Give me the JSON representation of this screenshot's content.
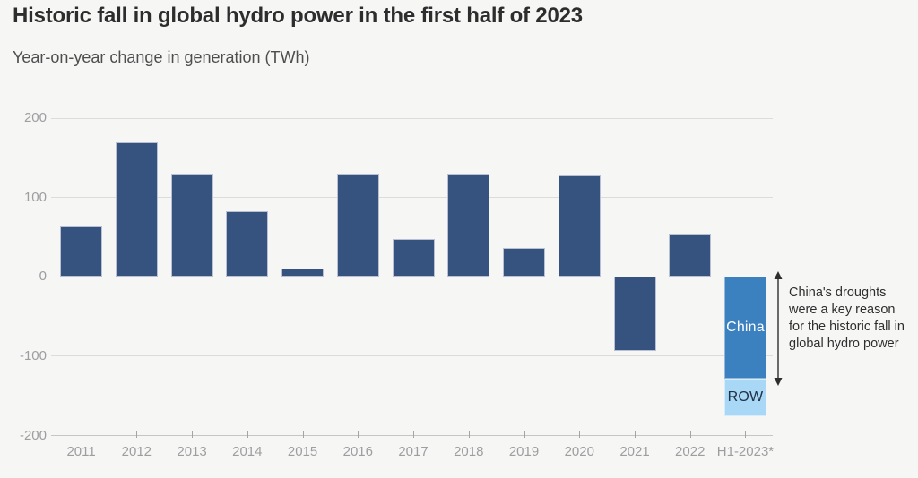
{
  "header": {
    "title": "Historic fall in global hydro power in the first half of 2023",
    "subtitle": "Year-on-year change in generation (TWh)"
  },
  "annotation": {
    "text": "China's droughts were a key reason for the historic fall in global hydro power"
  },
  "chart_data": {
    "type": "bar",
    "title": "Historic fall in global hydro power in the first half of 2023",
    "subtitle": "Year-on-year change in generation (TWh)",
    "unit": "TWh",
    "xlabel": "",
    "ylabel": "Year-on-year change in generation (TWh)",
    "ylim": [
      -200,
      200
    ],
    "yticks": [
      200,
      100,
      0,
      -100,
      -200
    ],
    "grid": true,
    "legend_position": "none",
    "categories": [
      "2011",
      "2012",
      "2013",
      "2014",
      "2015",
      "2016",
      "2017",
      "2018",
      "2019",
      "2020",
      "2021",
      "2022",
      "H1-2023*"
    ],
    "net_values": [
      63,
      170,
      130,
      83,
      10,
      130,
      48,
      130,
      36,
      128,
      -93,
      54,
      -176
    ],
    "bars": [
      {
        "category": "2011",
        "segments": [
          {
            "value": 63,
            "color": "navy"
          }
        ]
      },
      {
        "category": "2012",
        "segments": [
          {
            "value": 170,
            "color": "navy"
          }
        ]
      },
      {
        "category": "2013",
        "segments": [
          {
            "value": 130,
            "color": "navy"
          }
        ]
      },
      {
        "category": "2014",
        "segments": [
          {
            "value": 83,
            "color": "navy"
          }
        ]
      },
      {
        "category": "2015",
        "segments": [
          {
            "value": 10,
            "color": "navy"
          }
        ]
      },
      {
        "category": "2016",
        "segments": [
          {
            "value": 130,
            "color": "navy"
          }
        ]
      },
      {
        "category": "2017",
        "segments": [
          {
            "value": 48,
            "color": "navy"
          }
        ]
      },
      {
        "category": "2018",
        "segments": [
          {
            "value": 130,
            "color": "navy"
          }
        ]
      },
      {
        "category": "2019",
        "segments": [
          {
            "value": 36,
            "color": "navy"
          }
        ]
      },
      {
        "category": "2020",
        "segments": [
          {
            "value": 128,
            "color": "navy"
          }
        ]
      },
      {
        "category": "2021",
        "segments": [
          {
            "value": -93,
            "color": "navy"
          }
        ]
      },
      {
        "category": "2022",
        "segments": [
          {
            "value": 54,
            "color": "navy"
          }
        ]
      },
      {
        "category": "H1-2023*",
        "segments": [
          {
            "value": -128,
            "color": "china",
            "label": "China",
            "label_color": "#FFFFFF"
          },
          {
            "value": -48,
            "color": "row",
            "label": "ROW",
            "label_color": "#203246"
          }
        ]
      }
    ],
    "colors": {
      "navy": "#35537E",
      "china": "#3B80BF",
      "row": "#A8D8F5"
    },
    "annotation": "China's droughts were a key reason for the historic fall in global hydro power"
  }
}
